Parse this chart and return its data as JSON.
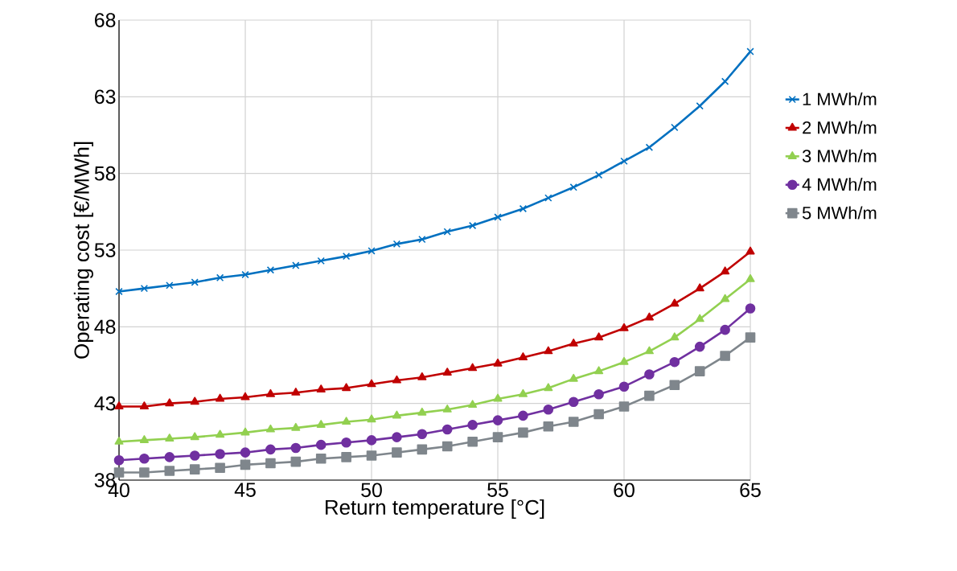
{
  "chart_data": {
    "type": "line",
    "xlabel": "Return temperature [°C]",
    "ylabel": "Operating cost [€/MWh]",
    "x": [
      40,
      41,
      42,
      43,
      44,
      45,
      46,
      47,
      48,
      49,
      50,
      51,
      52,
      53,
      54,
      55,
      56,
      57,
      58,
      59,
      60,
      61,
      62,
      63,
      64,
      65
    ],
    "series": [
      {
        "name": "1 MWh/m",
        "color": "#0070c0",
        "marker": "cross",
        "values": [
          50.3,
          50.5,
          50.7,
          50.9,
          51.2,
          51.4,
          51.7,
          52.0,
          52.3,
          52.6,
          52.95,
          53.4,
          53.7,
          54.2,
          54.6,
          55.15,
          55.7,
          56.4,
          57.1,
          57.9,
          58.8,
          59.7,
          61.0,
          62.4,
          64.0,
          65.95
        ]
      },
      {
        "name": "2 MWh/m",
        "color": "#c00000",
        "marker": "triangle",
        "values": [
          42.8,
          42.8,
          43.0,
          43.1,
          43.3,
          43.4,
          43.6,
          43.7,
          43.9,
          44.0,
          44.25,
          44.5,
          44.7,
          45.0,
          45.3,
          45.6,
          46.0,
          46.4,
          46.9,
          47.3,
          47.9,
          48.6,
          49.5,
          50.5,
          51.6,
          52.9
        ]
      },
      {
        "name": "3 MWh/m",
        "color": "#92d050",
        "marker": "triangle",
        "values": [
          40.5,
          40.6,
          40.7,
          40.8,
          40.95,
          41.1,
          41.3,
          41.4,
          41.6,
          41.8,
          41.95,
          42.2,
          42.4,
          42.6,
          42.9,
          43.3,
          43.6,
          44.0,
          44.6,
          45.1,
          45.7,
          46.4,
          47.3,
          48.5,
          49.8,
          51.1
        ]
      },
      {
        "name": "4 MWh/m",
        "color": "#7030a0",
        "marker": "circle",
        "values": [
          39.3,
          39.4,
          39.5,
          39.6,
          39.7,
          39.8,
          40.0,
          40.1,
          40.3,
          40.45,
          40.6,
          40.8,
          41.0,
          41.3,
          41.6,
          41.9,
          42.2,
          42.6,
          43.1,
          43.6,
          44.1,
          44.9,
          45.7,
          46.7,
          47.8,
          49.2
        ]
      },
      {
        "name": "5 MWh/m",
        "color": "#7f868c",
        "marker": "square",
        "values": [
          38.5,
          38.5,
          38.6,
          38.7,
          38.8,
          39.0,
          39.1,
          39.2,
          39.4,
          39.5,
          39.6,
          39.8,
          40.0,
          40.2,
          40.5,
          40.8,
          41.1,
          41.5,
          41.8,
          42.3,
          42.8,
          43.5,
          44.2,
          45.1,
          46.1,
          47.3
        ]
      }
    ],
    "xlim": [
      40,
      65
    ],
    "ylim": [
      38,
      68
    ],
    "xticks": [
      40,
      45,
      50,
      55,
      60,
      65
    ],
    "yticks": [
      38,
      43,
      48,
      53,
      58,
      63,
      68
    ],
    "grid": true,
    "legend": "right"
  }
}
